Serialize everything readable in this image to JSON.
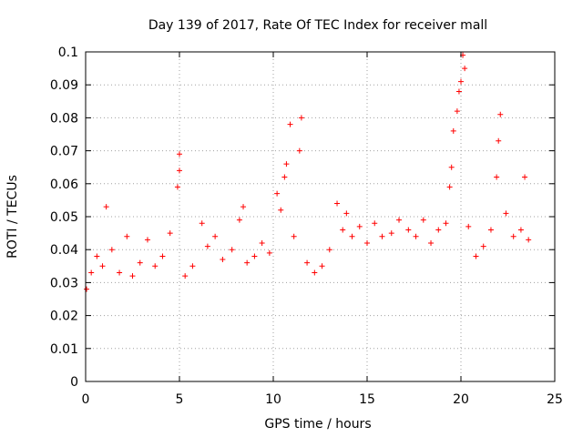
{
  "chart_data": {
    "type": "scatter",
    "title": "Day 139 of 2017, Rate Of TEC Index for receiver mall",
    "xlabel": "GPS time / hours",
    "ylabel": "ROTI / TECUs",
    "xlim": [
      0,
      25
    ],
    "ylim": [
      0,
      0.1
    ],
    "xticks": [
      0,
      5,
      10,
      15,
      20,
      25
    ],
    "xtick_labels": [
      "0",
      "5",
      "10",
      "15",
      "20",
      "25"
    ],
    "yticks": [
      0,
      0.01,
      0.02,
      0.03,
      0.04,
      0.05,
      0.06,
      0.07,
      0.08,
      0.09,
      0.1
    ],
    "ytick_labels": [
      "0",
      "0.01",
      "0.02",
      "0.03",
      "0.04",
      "0.05",
      "0.06",
      "0.07",
      "0.08",
      "0.09",
      "0.1"
    ],
    "grid": true,
    "marker": "+",
    "color": "#ff0000",
    "series": [
      {
        "x": [
          0.05,
          0.3,
          0.6,
          0.9,
          1.1,
          1.4,
          1.8,
          2.2,
          2.5,
          2.9,
          3.3,
          3.7,
          4.1,
          4.5,
          4.9,
          5.0,
          5.0,
          5.3,
          5.7,
          6.2,
          6.5,
          6.9,
          7.3,
          7.8,
          8.2,
          8.4,
          8.6,
          9.0,
          9.4,
          9.8,
          10.2,
          10.4,
          10.6,
          10.7,
          10.9,
          11.1,
          11.4,
          11.5,
          11.8,
          12.2,
          12.6,
          13.0,
          13.4,
          13.7,
          13.9,
          14.2,
          14.6,
          15.0,
          15.4,
          15.8,
          16.3,
          16.7,
          17.2,
          17.6,
          18.0,
          18.4,
          18.8,
          19.2,
          19.4,
          19.5,
          19.6,
          19.8,
          19.9,
          20.0,
          20.1,
          20.2,
          20.4,
          20.8,
          21.2,
          21.6,
          21.9,
          22.0,
          22.1,
          22.4,
          22.8,
          23.2,
          23.4,
          23.6
        ],
        "y": [
          0.028,
          0.033,
          0.038,
          0.035,
          0.053,
          0.04,
          0.033,
          0.044,
          0.032,
          0.036,
          0.043,
          0.035,
          0.038,
          0.045,
          0.059,
          0.064,
          0.069,
          0.032,
          0.035,
          0.048,
          0.041,
          0.044,
          0.037,
          0.04,
          0.049,
          0.053,
          0.036,
          0.038,
          0.042,
          0.039,
          0.057,
          0.052,
          0.062,
          0.066,
          0.078,
          0.044,
          0.07,
          0.08,
          0.036,
          0.033,
          0.035,
          0.04,
          0.054,
          0.046,
          0.051,
          0.044,
          0.047,
          0.042,
          0.048,
          0.044,
          0.045,
          0.049,
          0.046,
          0.044,
          0.049,
          0.042,
          0.046,
          0.048,
          0.059,
          0.065,
          0.076,
          0.082,
          0.088,
          0.091,
          0.099,
          0.095,
          0.047,
          0.038,
          0.041,
          0.046,
          0.062,
          0.073,
          0.081,
          0.051,
          0.044,
          0.046,
          0.062,
          0.043
        ]
      }
    ]
  }
}
